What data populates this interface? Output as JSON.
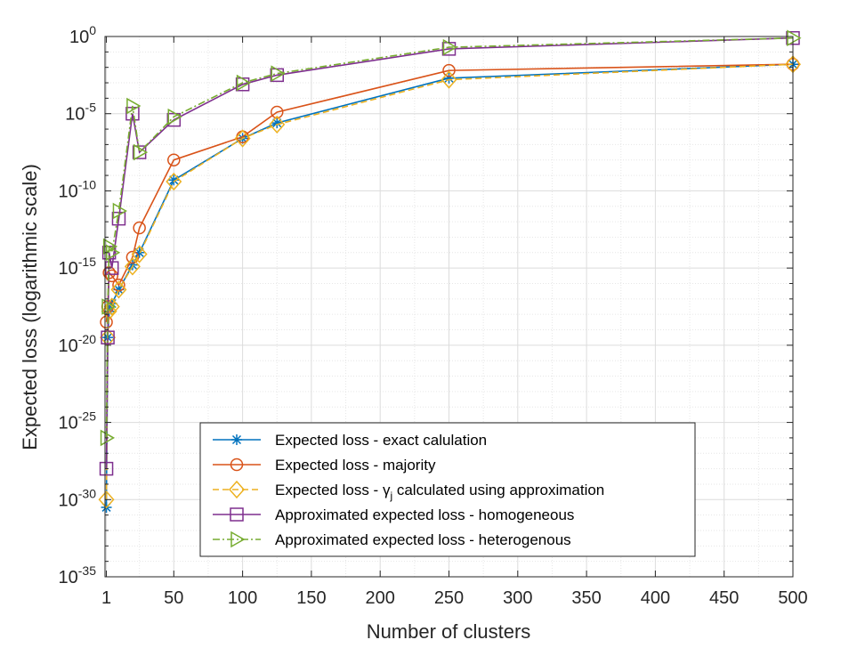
{
  "chart_data": {
    "type": "line",
    "title": "",
    "xlabel": "Number of clusters",
    "ylabel": "Expected loss (logarithmic scale)",
    "xlim": [
      0,
      500
    ],
    "ylim_log10": [
      -35,
      0
    ],
    "y_scale": "log",
    "grid": true,
    "minor_grid": true,
    "x_ticks": [
      {
        "value": 1,
        "label": "1"
      },
      {
        "value": 50,
        "label": "50"
      },
      {
        "value": 100,
        "label": "100"
      },
      {
        "value": 150,
        "label": "150"
      },
      {
        "value": 200,
        "label": "200"
      },
      {
        "value": 250,
        "label": "250"
      },
      {
        "value": 300,
        "label": "300"
      },
      {
        "value": 350,
        "label": "350"
      },
      {
        "value": 400,
        "label": "400"
      },
      {
        "value": 450,
        "label": "450"
      },
      {
        "value": 500,
        "label": "500"
      }
    ],
    "y_ticks": [
      {
        "exp": 0,
        "base": "10",
        "sup": "0"
      },
      {
        "exp": -5,
        "base": "10",
        "sup": "-5"
      },
      {
        "exp": -10,
        "base": "10",
        "sup": "-10"
      },
      {
        "exp": -15,
        "base": "10",
        "sup": "-15"
      },
      {
        "exp": -20,
        "base": "10",
        "sup": "-20"
      },
      {
        "exp": -25,
        "base": "10",
        "sup": "-25"
      },
      {
        "exp": -30,
        "base": "10",
        "sup": "-30"
      },
      {
        "exp": -35,
        "base": "10",
        "sup": "-35"
      }
    ],
    "legend_position": "bottom-right",
    "series": [
      {
        "name": "Expected loss - exact calulation",
        "color": "#0072BD",
        "dash": "solid",
        "marker": "asterisk",
        "points": [
          [
            1,
            -30.5
          ],
          [
            2,
            -19.5
          ],
          [
            3,
            -17.8
          ],
          [
            5,
            -17.3
          ],
          [
            10,
            -16.4
          ],
          [
            20,
            -14.8
          ],
          [
            25,
            -14.0
          ],
          [
            50,
            -9.3
          ],
          [
            100,
            -6.6
          ],
          [
            125,
            -5.6
          ],
          [
            250,
            -2.7
          ],
          [
            500,
            -1.8
          ]
        ]
      },
      {
        "name": "Expected loss - majority",
        "color": "#D95319",
        "dash": "solid",
        "marker": "circle",
        "points": [
          [
            1,
            -18.5
          ],
          [
            2,
            -17.5
          ],
          [
            3,
            -15.3
          ],
          [
            5,
            -15.5
          ],
          [
            10,
            -16.1
          ],
          [
            20,
            -14.3
          ],
          [
            25,
            -12.4
          ],
          [
            50,
            -8.0
          ],
          [
            100,
            -6.5
          ],
          [
            125,
            -4.9
          ],
          [
            250,
            -2.2
          ],
          [
            500,
            -1.8
          ]
        ]
      },
      {
        "name": "Expected loss - γ",
        "name_sub": "j",
        "name_suffix": " calculated using approximation",
        "color": "#EDB120",
        "dash": "dashed",
        "marker": "diamond",
        "points": [
          [
            1,
            -30.0
          ],
          [
            2,
            -19.5
          ],
          [
            3,
            -17.8
          ],
          [
            5,
            -17.5
          ],
          [
            10,
            -16.4
          ],
          [
            20,
            -14.9
          ],
          [
            25,
            -14.1
          ],
          [
            50,
            -9.4
          ],
          [
            100,
            -6.6
          ],
          [
            125,
            -5.7
          ],
          [
            250,
            -2.8
          ],
          [
            500,
            -1.8
          ]
        ]
      },
      {
        "name": "Approximated expected loss - homogeneous",
        "color": "#7E2F8E",
        "dash": "solid",
        "marker": "square",
        "points": [
          [
            1,
            -28.0
          ],
          [
            2,
            -19.5
          ],
          [
            3,
            -14.0
          ],
          [
            5,
            -15.0
          ],
          [
            10,
            -11.8
          ],
          [
            20,
            -5.0
          ],
          [
            25,
            -7.5
          ],
          [
            50,
            -5.4
          ],
          [
            100,
            -3.1
          ],
          [
            125,
            -2.5
          ],
          [
            250,
            -0.8
          ],
          [
            500,
            -0.1
          ]
        ]
      },
      {
        "name": "Approximated expected loss - heterogenous",
        "color": "#77AC30",
        "dash": "dashdot",
        "marker": "triangle-right",
        "points": [
          [
            1,
            -26.0
          ],
          [
            2,
            -17.5
          ],
          [
            3,
            -13.6
          ],
          [
            5,
            -14.0
          ],
          [
            10,
            -11.3
          ],
          [
            20,
            -4.5
          ],
          [
            25,
            -7.5
          ],
          [
            50,
            -5.2
          ],
          [
            100,
            -3.0
          ],
          [
            125,
            -2.4
          ],
          [
            250,
            -0.7
          ],
          [
            500,
            -0.1
          ]
        ]
      }
    ]
  }
}
